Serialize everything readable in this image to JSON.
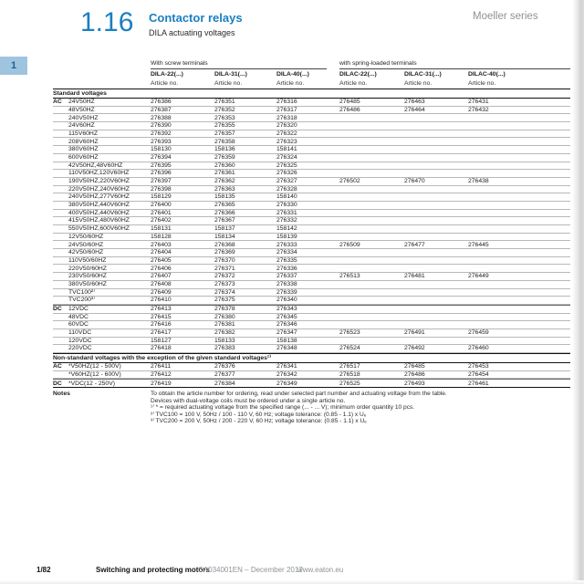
{
  "page": {
    "section_number": "1.16",
    "title": "Contactor relays",
    "subtitle": "DILA actuating voltages",
    "brand": "Moeller series",
    "side_tab": "1"
  },
  "table": {
    "group_left": "With screw terminals",
    "group_right": "with spring-loaded terminals",
    "columns": [
      "DILA-22(...)",
      "DILA-31(...)",
      "DILA-40(...)",
      "DILAC-22(...)",
      "DILAC-31(...)",
      "DILAC-40(...)"
    ],
    "article_label": "Article no.",
    "sections": [
      {
        "header": "Standard voltages",
        "groups": [
          {
            "type": "AC",
            "rows": [
              {
                "voltage": "24V50HZ",
                "articles": [
                  "276386",
                  "276351",
                  "276316",
                  "276485",
                  "276463",
                  "276431"
                ]
              },
              {
                "voltage": "48V50HZ",
                "articles": [
                  "276387",
                  "276352",
                  "276317",
                  "276486",
                  "276464",
                  "276432"
                ]
              },
              {
                "voltage": "240V50HZ",
                "articles": [
                  "276388",
                  "276353",
                  "276318",
                  "",
                  "",
                  ""
                ]
              },
              {
                "voltage": "24V60HZ",
                "articles": [
                  "276390",
                  "276355",
                  "276320",
                  "",
                  "",
                  ""
                ]
              },
              {
                "voltage": "115V60HZ",
                "articles": [
                  "276392",
                  "276357",
                  "276322",
                  "",
                  "",
                  ""
                ]
              },
              {
                "voltage": "208V60HZ",
                "articles": [
                  "276393",
                  "276358",
                  "276323",
                  "",
                  "",
                  ""
                ]
              },
              {
                "voltage": "380V60HZ",
                "articles": [
                  "158130",
                  "158136",
                  "158141",
                  "",
                  "",
                  ""
                ]
              },
              {
                "voltage": "600V60HZ",
                "articles": [
                  "276394",
                  "276359",
                  "276324",
                  "",
                  "",
                  ""
                ]
              },
              {
                "voltage": "42V50HZ,48V60HZ",
                "articles": [
                  "276395",
                  "276360",
                  "276325",
                  "",
                  "",
                  ""
                ]
              },
              {
                "voltage": "110V50HZ,120V60HZ",
                "articles": [
                  "276396",
                  "276361",
                  "276326",
                  "",
                  "",
                  ""
                ]
              },
              {
                "voltage": "190V50HZ,220V60HZ",
                "articles": [
                  "276397",
                  "276362",
                  "276327",
                  "276502",
                  "276470",
                  "276438"
                ]
              },
              {
                "voltage": "220V50HZ,240V60HZ",
                "articles": [
                  "276398",
                  "276363",
                  "276328",
                  "",
                  "",
                  ""
                ]
              },
              {
                "voltage": "240V50HZ,277V60HZ",
                "articles": [
                  "158129",
                  "158135",
                  "158140",
                  "",
                  "",
                  ""
                ]
              },
              {
                "voltage": "380V50HZ,440V60HZ",
                "articles": [
                  "276400",
                  "276365",
                  "276330",
                  "",
                  "",
                  ""
                ]
              },
              {
                "voltage": "400V50HZ,440V60HZ",
                "articles": [
                  "276401",
                  "276366",
                  "276331",
                  "",
                  "",
                  ""
                ]
              },
              {
                "voltage": "415V50HZ,480V60HZ",
                "articles": [
                  "276402",
                  "276367",
                  "276332",
                  "",
                  "",
                  ""
                ]
              },
              {
                "voltage": "550V50HZ,600V60HZ",
                "articles": [
                  "158131",
                  "158137",
                  "158142",
                  "",
                  "",
                  ""
                ]
              },
              {
                "voltage": "12V50/60HZ",
                "articles": [
                  "158128",
                  "158134",
                  "158139",
                  "",
                  "",
                  ""
                ]
              },
              {
                "voltage": "24V50/60HZ",
                "articles": [
                  "276403",
                  "276368",
                  "276333",
                  "276509",
                  "276477",
                  "276445"
                ]
              },
              {
                "voltage": "42V50/60HZ",
                "articles": [
                  "276404",
                  "276369",
                  "276334",
                  "",
                  "",
                  ""
                ]
              },
              {
                "voltage": "110V50/60HZ",
                "articles": [
                  "276405",
                  "276370",
                  "276335",
                  "",
                  "",
                  ""
                ]
              },
              {
                "voltage": "220V50/60HZ",
                "articles": [
                  "276406",
                  "276371",
                  "276336",
                  "",
                  "",
                  ""
                ]
              },
              {
                "voltage": "230V50/60HZ",
                "articles": [
                  "276407",
                  "276372",
                  "276337",
                  "276513",
                  "276481",
                  "276449"
                ]
              },
              {
                "voltage": "380V50/60HZ",
                "articles": [
                  "276408",
                  "276373",
                  "276338",
                  "",
                  "",
                  ""
                ]
              },
              {
                "voltage": "TVC100²⁾",
                "articles": [
                  "276409",
                  "276374",
                  "276339",
                  "",
                  "",
                  ""
                ]
              },
              {
                "voltage": "TVC200³⁾",
                "articles": [
                  "276410",
                  "276375",
                  "276340",
                  "",
                  "",
                  ""
                ]
              }
            ]
          },
          {
            "type": "DC",
            "rows": [
              {
                "voltage": "12VDC",
                "articles": [
                  "276413",
                  "276378",
                  "276343",
                  "",
                  "",
                  ""
                ]
              },
              {
                "voltage": "48VDC",
                "articles": [
                  "276415",
                  "276380",
                  "276345",
                  "",
                  "",
                  ""
                ]
              },
              {
                "voltage": "60VDC",
                "articles": [
                  "276416",
                  "276381",
                  "276346",
                  "",
                  "",
                  ""
                ]
              },
              {
                "voltage": "110VDC",
                "articles": [
                  "276417",
                  "276382",
                  "276347",
                  "276523",
                  "276491",
                  "276459"
                ]
              },
              {
                "voltage": "120VDC",
                "articles": [
                  "158127",
                  "158133",
                  "158138",
                  "",
                  "",
                  ""
                ]
              },
              {
                "voltage": "220VDC",
                "articles": [
                  "276418",
                  "276383",
                  "276348",
                  "276524",
                  "276492",
                  "276460"
                ]
              }
            ]
          }
        ]
      },
      {
        "header": "Non-standard voltages with the exception of the given standard voltages¹⁾",
        "groups": [
          {
            "type": "AC",
            "rows": [
              {
                "voltage": "*V50HZ(12 - 500V)",
                "articles": [
                  "276411",
                  "276376",
                  "276341",
                  "276517",
                  "276485",
                  "276453"
                ]
              },
              {
                "voltage": "*V60HZ(12 - 600V)",
                "articles": [
                  "276412",
                  "276377",
                  "276342",
                  "276518",
                  "276486",
                  "276454"
                ]
              }
            ]
          },
          {
            "type": "DC",
            "rows": [
              {
                "voltage": "*VDC(12 - 250V)",
                "articles": [
                  "276419",
                  "276384",
                  "276349",
                  "276525",
                  "276493",
                  "276461"
                ]
              }
            ]
          }
        ]
      }
    ]
  },
  "notes": {
    "label": "Notes",
    "lines": [
      "To obtain the article number for ordering, read under selected part number and actuating voltage from the table.",
      "Devices with dual-voltage coils must be ordered under a single article no.",
      "¹⁾ * = required actuating voltage from the specified range (... - ... V); minimum order quantity 10 pcs.",
      "²⁾ TVC100 = 100 V, 50Hz / 100 - 110 V, 60 Hz; voltage tolerance: (0.85 - 1.1) x Uₑ",
      "³⁾ TVC200 = 200 V, 50Hz / 200 - 220 V, 60 Hz; voltage tolerance: (0.85 - 1.1) x Uₑ"
    ]
  },
  "footer": {
    "page": "1/82",
    "title": "Switching and protecting motors",
    "code": "CA034001EN – December 2017",
    "url": "www.eaton.eu"
  },
  "colors": {
    "accent_blue": "#1b7ec2",
    "tab_bg": "#9fc4e0",
    "tab_text": "#1e5f93",
    "muted_gray": "#8d9297"
  }
}
